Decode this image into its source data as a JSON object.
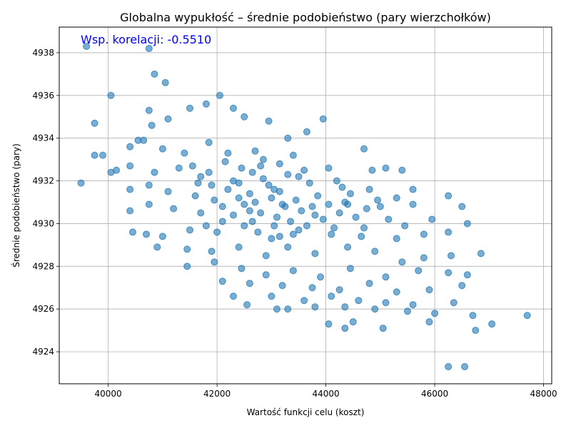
{
  "chart_data": {
    "type": "scatter",
    "title": "Globalna wypukłość – średnie podobieństwo (pary wierzchołków)",
    "xlabel": "Wartość funkcji celu (koszt)",
    "ylabel": "Średnie podobieństwo (pary)",
    "annotation": "Wsp. korelacji: -0.5510",
    "xlim": [
      39100,
      48150
    ],
    "ylim": [
      4922.5,
      4939.2
    ],
    "xticks": [
      40000,
      42000,
      44000,
      46000,
      48000
    ],
    "yticks": [
      4924,
      4926,
      4928,
      4930,
      4932,
      4934,
      4936,
      4938
    ],
    "grid": true,
    "color": "#1f77b4",
    "points": [
      [
        39600,
        4938.3
      ],
      [
        40750,
        4938.2
      ],
      [
        40850,
        4937.0
      ],
      [
        41050,
        4936.6
      ],
      [
        40050,
        4936.0
      ],
      [
        42050,
        4936.0
      ],
      [
        41800,
        4935.6
      ],
      [
        42300,
        4935.4
      ],
      [
        40750,
        4935.3
      ],
      [
        41500,
        4935.4
      ],
      [
        39750,
        4934.7
      ],
      [
        40800,
        4934.6
      ],
      [
        41100,
        4934.9
      ],
      [
        42500,
        4935.0
      ],
      [
        42950,
        4934.8
      ],
      [
        43300,
        4934.0
      ],
      [
        43650,
        4934.3
      ],
      [
        43950,
        4934.9
      ],
      [
        40550,
        4933.9
      ],
      [
        40650,
        4933.9
      ],
      [
        39750,
        4933.2
      ],
      [
        39900,
        4933.2
      ],
      [
        40400,
        4933.6
      ],
      [
        41000,
        4933.5
      ],
      [
        41400,
        4933.3
      ],
      [
        41850,
        4933.8
      ],
      [
        42200,
        4933.3
      ],
      [
        42700,
        4933.4
      ],
      [
        43400,
        4933.2
      ],
      [
        44700,
        4933.5
      ],
      [
        40050,
        4932.4
      ],
      [
        40150,
        4932.5
      ],
      [
        40400,
        4932.7
      ],
      [
        40850,
        4932.4
      ],
      [
        41300,
        4932.6
      ],
      [
        41700,
        4932.2
      ],
      [
        42150,
        4932.9
      ],
      [
        42800,
        4932.7
      ],
      [
        43500,
        4932.2
      ],
      [
        44050,
        4932.6
      ],
      [
        44850,
        4932.5
      ],
      [
        45100,
        4932.6
      ],
      [
        45400,
        4932.5
      ],
      [
        39500,
        4931.9
      ],
      [
        40400,
        4931.6
      ],
      [
        40750,
        4931.8
      ],
      [
        41100,
        4931.5
      ],
      [
        41600,
        4931.3
      ],
      [
        41900,
        4931.8
      ],
      [
        42400,
        4931.9
      ],
      [
        43050,
        4931.6
      ],
      [
        43700,
        4931.9
      ],
      [
        44300,
        4931.7
      ],
      [
        44800,
        4931.6
      ],
      [
        45300,
        4931.2
      ],
      [
        45600,
        4931.6
      ],
      [
        46250,
        4931.3
      ],
      [
        40400,
        4930.6
      ],
      [
        40750,
        4930.9
      ],
      [
        41200,
        4930.7
      ],
      [
        41700,
        4930.5
      ],
      [
        42100,
        4930.8
      ],
      [
        42600,
        4930.6
      ],
      [
        43200,
        4930.9
      ],
      [
        43800,
        4930.4
      ],
      [
        44400,
        4930.9
      ],
      [
        45000,
        4930.8
      ],
      [
        45600,
        4930.9
      ],
      [
        45950,
        4930.2
      ],
      [
        46500,
        4930.8
      ],
      [
        46600,
        4930.0
      ],
      [
        40450,
        4929.6
      ],
      [
        40700,
        4929.5
      ],
      [
        41000,
        4929.4
      ],
      [
        41500,
        4929.7
      ],
      [
        42000,
        4929.6
      ],
      [
        42500,
        4929.9
      ],
      [
        43000,
        4929.3
      ],
      [
        43500,
        4929.7
      ],
      [
        44100,
        4929.5
      ],
      [
        44700,
        4929.8
      ],
      [
        45300,
        4929.3
      ],
      [
        45800,
        4929.5
      ],
      [
        46250,
        4929.6
      ],
      [
        40900,
        4928.9
      ],
      [
        41450,
        4928.8
      ],
      [
        41900,
        4928.7
      ],
      [
        42400,
        4928.9
      ],
      [
        42900,
        4928.5
      ],
      [
        43300,
        4928.9
      ],
      [
        43800,
        4928.6
      ],
      [
        44400,
        4928.9
      ],
      [
        44900,
        4928.7
      ],
      [
        45400,
        4928.2
      ],
      [
        45800,
        4928.4
      ],
      [
        46300,
        4928.5
      ],
      [
        46850,
        4928.6
      ],
      [
        41450,
        4928.0
      ],
      [
        41950,
        4928.2
      ],
      [
        42450,
        4927.9
      ],
      [
        42900,
        4927.6
      ],
      [
        43400,
        4927.8
      ],
      [
        43900,
        4927.5
      ],
      [
        44450,
        4927.9
      ],
      [
        45100,
        4927.5
      ],
      [
        45700,
        4927.8
      ],
      [
        46250,
        4927.7
      ],
      [
        46600,
        4927.6
      ],
      [
        42100,
        4927.3
      ],
      [
        42600,
        4927.2
      ],
      [
        43200,
        4927.1
      ],
      [
        43750,
        4927.0
      ],
      [
        44250,
        4926.9
      ],
      [
        44800,
        4927.2
      ],
      [
        45300,
        4926.8
      ],
      [
        45900,
        4926.9
      ],
      [
        46500,
        4927.1
      ],
      [
        42300,
        4926.6
      ],
      [
        43000,
        4926.6
      ],
      [
        43600,
        4926.4
      ],
      [
        44100,
        4926.6
      ],
      [
        44600,
        4926.4
      ],
      [
        45100,
        4926.3
      ],
      [
        45600,
        4926.2
      ],
      [
        46350,
        4926.3
      ],
      [
        42550,
        4926.2
      ],
      [
        43100,
        4926.0
      ],
      [
        43300,
        4926.0
      ],
      [
        43800,
        4926.1
      ],
      [
        44350,
        4926.1
      ],
      [
        44900,
        4926.0
      ],
      [
        45500,
        4925.9
      ],
      [
        46000,
        4925.8
      ],
      [
        46700,
        4925.7
      ],
      [
        47700,
        4925.7
      ],
      [
        44050,
        4925.3
      ],
      [
        44500,
        4925.4
      ],
      [
        45050,
        4925.1
      ],
      [
        45900,
        4925.4
      ],
      [
        46750,
        4925.0
      ],
      [
        47050,
        4925.3
      ],
      [
        44350,
        4925.1
      ],
      [
        46250,
        4923.3
      ],
      [
        46550,
        4923.3
      ],
      [
        42700,
        4931.0
      ],
      [
        42800,
        4930.5
      ],
      [
        43000,
        4931.2
      ],
      [
        43100,
        4930.3
      ],
      [
        43150,
        4931.5
      ],
      [
        43250,
        4930.8
      ],
      [
        43350,
        4930.1
      ],
      [
        43450,
        4931.1
      ],
      [
        43550,
        4930.6
      ],
      [
        43650,
        4929.9
      ],
      [
        42950,
        4931.8
      ],
      [
        42850,
        4932.1
      ],
      [
        42600,
        4931.4
      ],
      [
        42500,
        4930.9
      ],
      [
        42400,
        4931.2
      ],
      [
        43750,
        4930.8
      ],
      [
        43850,
        4931.3
      ],
      [
        43950,
        4930.2
      ],
      [
        44050,
        4930.9
      ],
      [
        44150,
        4929.8
      ],
      [
        42300,
        4930.4
      ],
      [
        42200,
        4931.6
      ],
      [
        42100,
        4930.1
      ],
      [
        41950,
        4931.1
      ],
      [
        41800,
        4929.9
      ],
      [
        43050,
        4929.9
      ],
      [
        43150,
        4929.4
      ],
      [
        42750,
        4929.6
      ],
      [
        42650,
        4930.1
      ],
      [
        43400,
        4929.5
      ],
      [
        44250,
        4930.5
      ],
      [
        44350,
        4931.0
      ],
      [
        44550,
        4930.3
      ],
      [
        44650,
        4929.4
      ],
      [
        44750,
        4930.7
      ],
      [
        43600,
        4932.5
      ],
      [
        43300,
        4932.3
      ],
      [
        43150,
        4932.8
      ],
      [
        42850,
        4933.0
      ],
      [
        42650,
        4932.4
      ],
      [
        42450,
        4932.6
      ],
      [
        42300,
        4932.0
      ],
      [
        41850,
        4932.4
      ],
      [
        41650,
        4931.9
      ],
      [
        41550,
        4932.7
      ],
      [
        44200,
        4932.0
      ],
      [
        44450,
        4931.4
      ],
      [
        44950,
        4931.1
      ],
      [
        45150,
        4930.2
      ],
      [
        45450,
        4929.9
      ]
    ]
  }
}
